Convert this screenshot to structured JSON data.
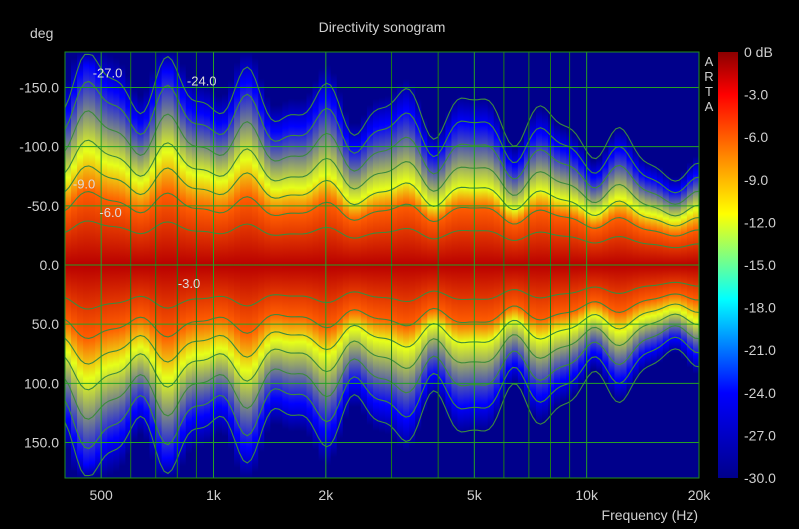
{
  "chart_data": {
    "type": "heatmap",
    "title": "Directivity sonogram",
    "ylabel": "deg",
    "xlabel": "Frequency (Hz)",
    "x_scale": "log",
    "xlim": [
      400,
      20000
    ],
    "ylim": [
      -180,
      180
    ],
    "x_ticks": [
      {
        "value": 500,
        "label": "500"
      },
      {
        "value": 1000,
        "label": "1k"
      },
      {
        "value": 2000,
        "label": "2k"
      },
      {
        "value": 5000,
        "label": "5k"
      },
      {
        "value": 10000,
        "label": "10k"
      },
      {
        "value": 20000,
        "label": "20k"
      }
    ],
    "y_ticks": [
      {
        "value": -150,
        "label": "-150.0"
      },
      {
        "value": -100,
        "label": "-100.0"
      },
      {
        "value": -50,
        "label": "-50.0"
      },
      {
        "value": 0,
        "label": "0.0"
      },
      {
        "value": 50,
        "label": "50.0"
      },
      {
        "value": 100,
        "label": "100.0"
      },
      {
        "value": 150,
        "label": "150.0"
      }
    ],
    "colorbar": {
      "range_db": [
        -30,
        0
      ],
      "labels": [
        "0 dB",
        "-3.0",
        "-6.0",
        "-9.0",
        "-12.0",
        "-15.0",
        "-18.0",
        "-21.0",
        "-24.0",
        "-27.0",
        "-30.0"
      ],
      "colors": [
        "#8b0000",
        "#ff0000",
        "#ff8c00",
        "#ffff00",
        "#00ffff",
        "#0000ff",
        "#00008b"
      ]
    },
    "contour_labels": [
      {
        "freq": 520,
        "angle": -162,
        "text": "-27.0"
      },
      {
        "freq": 930,
        "angle": -155,
        "text": "-24.0"
      },
      {
        "freq": 450,
        "angle": -68,
        "text": "-9.0"
      },
      {
        "freq": 530,
        "angle": -44,
        "text": "-6.0"
      },
      {
        "freq": 860,
        "angle": 16,
        "text": "-3.0"
      }
    ],
    "approx_beamwidth_halfangle_deg": [
      {
        "freq": 400,
        "contour_-6dB": 55,
        "contour_-12dB": 85,
        "contour_-24dB": 150
      },
      {
        "freq": 1000,
        "contour_-6dB": 50,
        "contour_-12dB": 80,
        "contour_-24dB": 135
      },
      {
        "freq": 2000,
        "contour_-6dB": 45,
        "contour_-12dB": 65,
        "contour_-24dB": 120
      },
      {
        "freq": 5000,
        "contour_-6dB": 45,
        "contour_-12dB": 60,
        "contour_-24dB": 110
      },
      {
        "freq": 10000,
        "contour_-6dB": 38,
        "contour_-12dB": 52,
        "contour_-24dB": 90
      },
      {
        "freq": 20000,
        "contour_-6dB": 25,
        "contour_-12dB": 40,
        "contour_-24dB": 65
      }
    ],
    "watermark": "ARTA",
    "grid": true
  }
}
